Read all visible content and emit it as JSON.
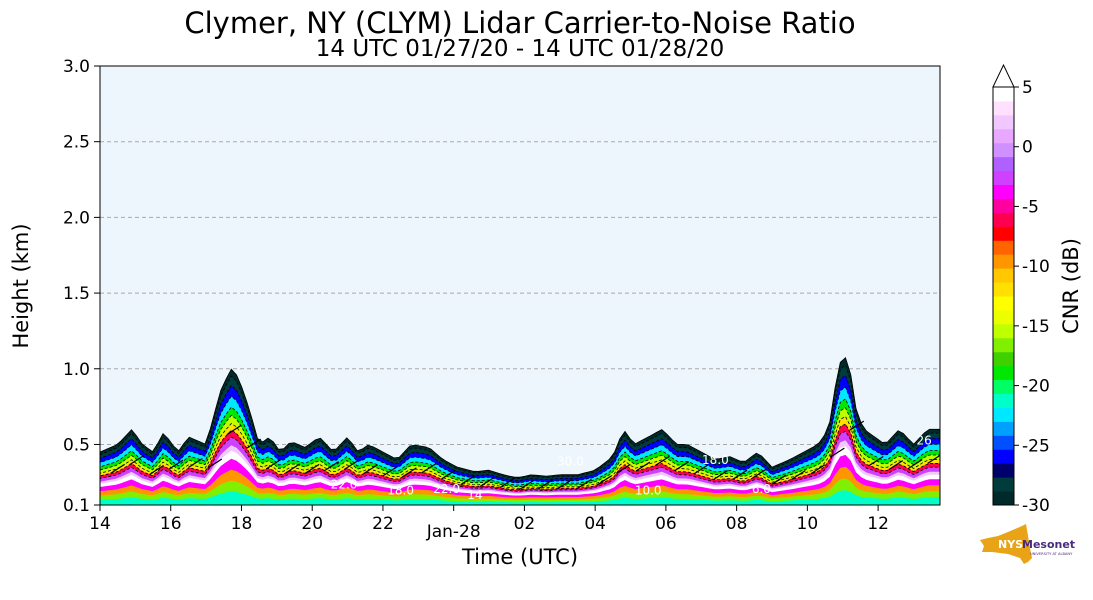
{
  "title": "Clymer, NY (CLYM) Lidar Carrier-to-Noise Ratio",
  "subtitle": "14 UTC 01/27/20 - 14 UTC 01/28/20",
  "chart_data": {
    "type": "heatmap",
    "xlabel": "Time (UTC)",
    "ylabel": "Height (km)",
    "x_ticks": [
      "14",
      "16",
      "18",
      "20",
      "22",
      "Jan-28",
      "02",
      "04",
      "06",
      "08",
      "10",
      "12"
    ],
    "x_hours": [
      0,
      2,
      4,
      6,
      8,
      10,
      12,
      14,
      16,
      18,
      20,
      22
    ],
    "xlim_hours": [
      0,
      23.75
    ],
    "y_ticks": [
      "0.1",
      "0.5",
      "1.0",
      "1.5",
      "2.0",
      "2.5",
      "3.0"
    ],
    "y_values": [
      0.1,
      0.5,
      1.0,
      1.5,
      2.0,
      2.5,
      3.0
    ],
    "ylim": [
      0.1,
      3.0
    ],
    "grid": "horizontal dashed",
    "colorbar": {
      "label": "CNR (dB)",
      "ticks": [
        "5",
        "0",
        "-5",
        "-10",
        "-15",
        "-20",
        "-25",
        "-30"
      ],
      "tick_values": [
        5,
        0,
        -5,
        -10,
        -15,
        -20,
        -25,
        -30
      ],
      "range": [
        -30,
        5
      ],
      "colors": [
        "#002a2a",
        "#003c3c",
        "#00006a",
        "#0000ff",
        "#0050ff",
        "#00a0ff",
        "#00e8ff",
        "#00ffc8",
        "#00ff64",
        "#00e800",
        "#40d000",
        "#80f000",
        "#c0ff00",
        "#ecff00",
        "#ffff00",
        "#ffe000",
        "#ffc800",
        "#ff9600",
        "#ff6400",
        "#ff0000",
        "#ff0050",
        "#ff00a0",
        "#ff00ff",
        "#d040ff",
        "#b060ff",
        "#d090ff",
        "#e8a8ff",
        "#f0c8ff",
        "#ffe0ff",
        "#ffffff"
      ]
    },
    "ceiling_profile_km": {
      "hours": [
        0,
        0.5,
        0.9,
        1.2,
        1.5,
        1.8,
        2.2,
        2.5,
        3.0,
        3.4,
        3.7,
        3.9,
        4.2,
        4.5,
        4.8,
        5.1,
        5.4,
        5.8,
        6.2,
        6.6,
        7.0,
        7.3,
        7.6,
        8.0,
        8.4,
        8.8,
        9.3,
        9.7,
        10.1,
        10.6,
        11.0,
        11.4,
        11.8,
        12.2,
        12.6,
        13.0,
        13.5,
        14.0,
        14.5,
        14.8,
        15.1,
        15.5,
        15.9,
        16.3,
        16.6,
        17.0,
        17.4,
        17.8,
        18.2,
        18.6,
        19.0,
        19.5,
        19.9,
        20.3,
        20.6,
        20.8,
        21.0,
        21.2,
        21.4,
        21.6,
        21.9,
        22.2,
        22.6,
        23.0,
        23.4,
        23.75
      ],
      "km": [
        0.45,
        0.5,
        0.6,
        0.5,
        0.45,
        0.58,
        0.45,
        0.55,
        0.5,
        0.85,
        1.0,
        0.95,
        0.75,
        0.5,
        0.55,
        0.45,
        0.52,
        0.48,
        0.55,
        0.45,
        0.55,
        0.45,
        0.5,
        0.45,
        0.4,
        0.5,
        0.48,
        0.4,
        0.35,
        0.32,
        0.33,
        0.3,
        0.28,
        0.3,
        0.29,
        0.3,
        0.3,
        0.33,
        0.42,
        0.6,
        0.5,
        0.55,
        0.6,
        0.5,
        0.5,
        0.45,
        0.4,
        0.42,
        0.38,
        0.45,
        0.35,
        0.4,
        0.45,
        0.5,
        0.6,
        0.9,
        1.12,
        1.0,
        0.7,
        0.6,
        0.55,
        0.5,
        0.6,
        0.5,
        0.6,
        0.6
      ]
    },
    "contour_labels": [
      {
        "text": "30.0",
        "hour": 13.3,
        "km": 0.36
      },
      {
        "text": "18.0",
        "hour": 17.4,
        "km": 0.37
      },
      {
        "text": "22.0",
        "hour": 6.9,
        "km": 0.21
      },
      {
        "text": "18.0",
        "hour": 8.5,
        "km": 0.17
      },
      {
        "text": "22.0",
        "hour": 9.8,
        "km": 0.18
      },
      {
        "text": "14",
        "hour": 10.6,
        "km": 0.14
      },
      {
        "text": "26",
        "hour": 23.3,
        "km": 0.5
      },
      {
        "text": "6.0",
        "hour": 18.7,
        "km": 0.18
      },
      {
        "text": "10.0",
        "hour": 15.5,
        "km": 0.17
      }
    ]
  },
  "logo": {
    "text": "NYS",
    "text2": "Mesonet",
    "text3": "UNIVERSITY AT ALBANY"
  }
}
